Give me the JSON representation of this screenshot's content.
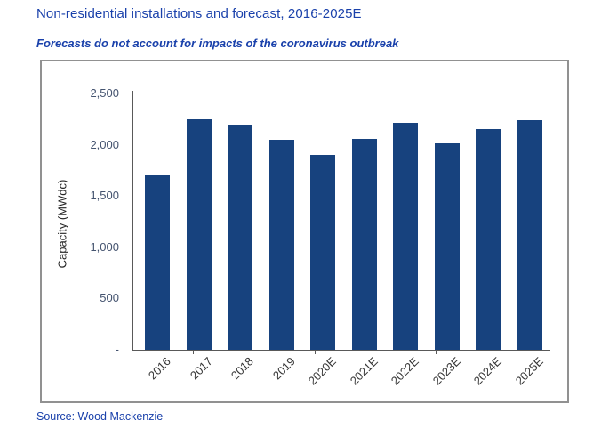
{
  "title": "Non-residential installations and forecast, 2016-2025E",
  "subtitle": "Forecasts do not account for impacts of the coronavirus outbreak",
  "source": "Source: Wood Mackenzie",
  "colors": {
    "bar": "#17427E",
    "heading": "#1A41AB",
    "axis": "#595959",
    "box_border": "#919191",
    "tick_label": "#44536F"
  },
  "chart_data": {
    "type": "bar",
    "categories": [
      "2016",
      "2017",
      "2018",
      "2019",
      "2020E",
      "2021E",
      "2022E",
      "2023E",
      "2024E",
      "2025E"
    ],
    "values": [
      1700,
      2250,
      2190,
      2050,
      1900,
      2060,
      2210,
      2010,
      2150,
      2240
    ],
    "title": "Non-residential installations and forecast, 2016-2025E",
    "xlabel": "",
    "ylabel": "Capacity (MWdc)",
    "ylim": [
      0,
      2500
    ],
    "yticks": [
      {
        "value": 0,
        "label": "-"
      },
      {
        "value": 500,
        "label": "500"
      },
      {
        "value": 1000,
        "label": "1,000"
      },
      {
        "value": 1500,
        "label": "1,500"
      },
      {
        "value": 2000,
        "label": "2,000"
      },
      {
        "value": 2500,
        "label": "2,500"
      }
    ],
    "grid": false,
    "legend": false,
    "bar_color": "#17427E"
  }
}
